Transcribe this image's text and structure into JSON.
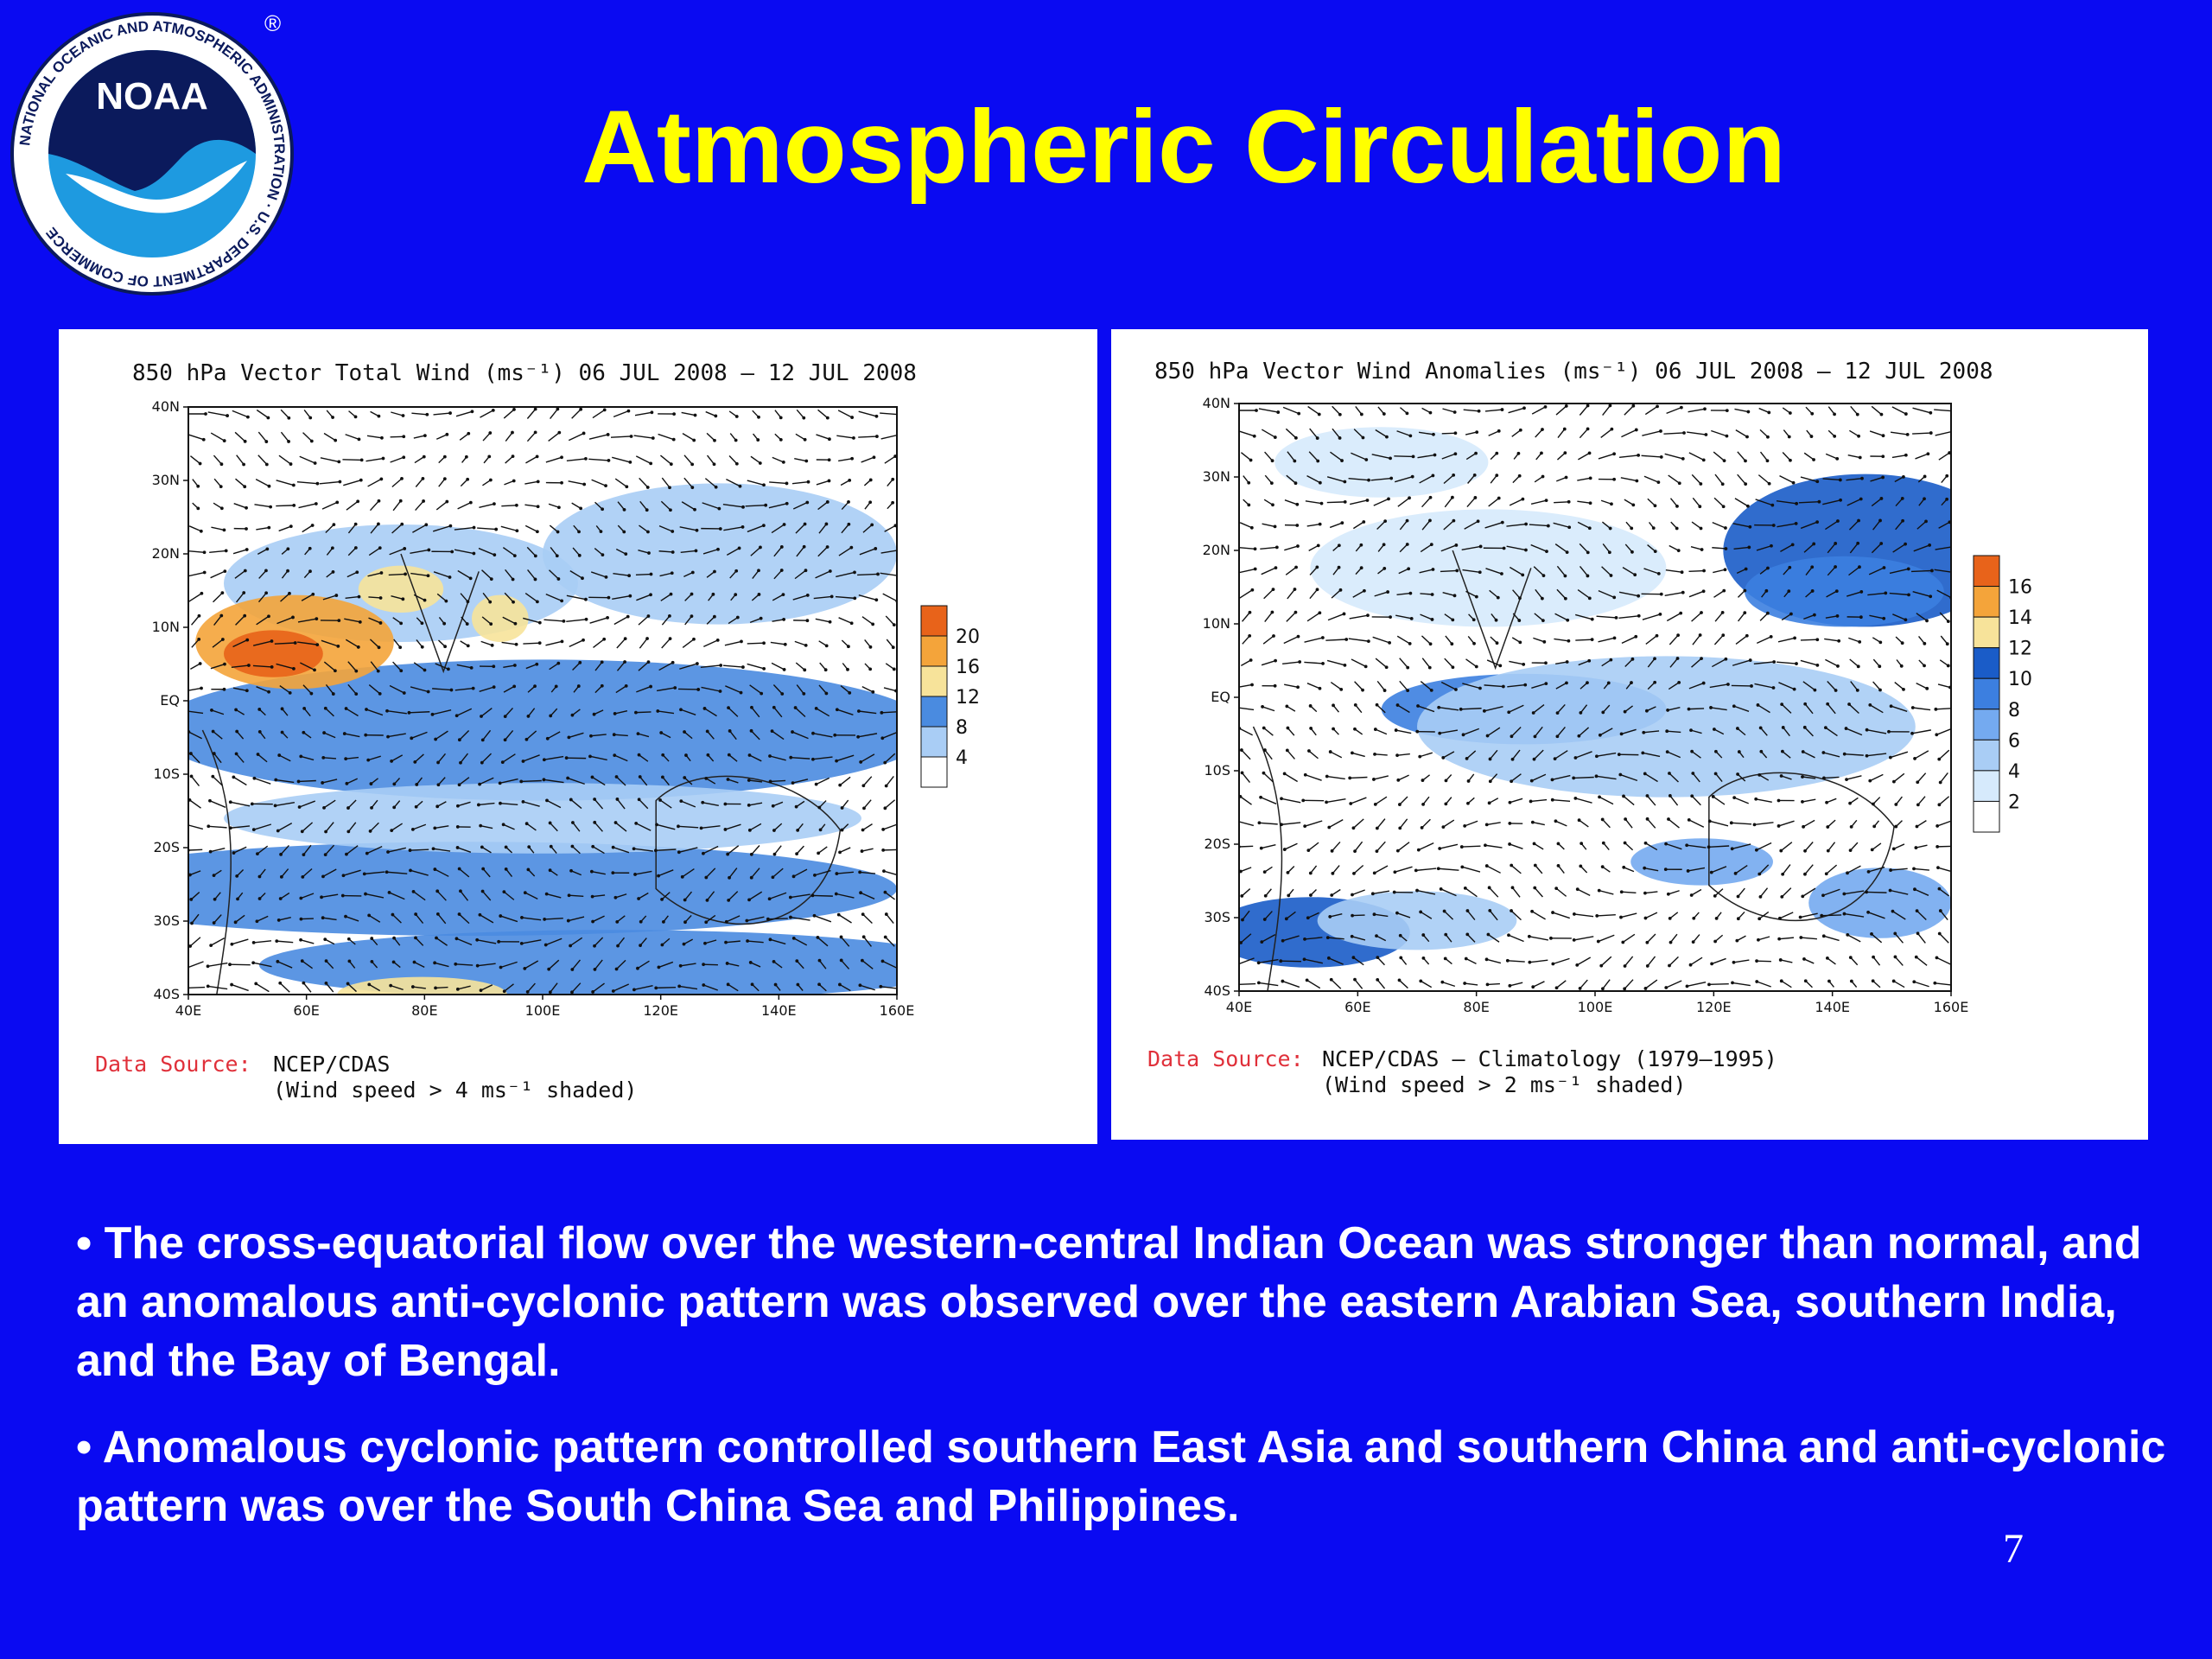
{
  "slide": {
    "title": "Atmospheric Circulation",
    "page_number": "7"
  },
  "logo": {
    "text": "NOAA",
    "ring_text": "NATIONAL OCEANIC AND ATMOSPHERIC ADMINISTRATION · U.S. DEPARTMENT OF COMMERCE",
    "registered": "®"
  },
  "maps": [
    {
      "title": "850 hPa Vector Total Wind (ms⁻¹) 06 JUL 2008 – 12 JUL 2008",
      "lat_labels": [
        "40N",
        "30N",
        "20N",
        "10N",
        "EQ",
        "10S",
        "20S",
        "30S",
        "40S"
      ],
      "lon_labels": [
        "40E",
        "60E",
        "80E",
        "100E",
        "120E",
        "140E",
        "160E"
      ],
      "colorbar_labels": [
        "20",
        "16",
        "12",
        "8",
        "4"
      ],
      "colorbar_colors": [
        "#e8631a",
        "#f4a43a",
        "#f7e39a",
        "#4a8be0",
        "#a9cdf5",
        "#ffffff"
      ],
      "source_label": "Data Source:",
      "source_line1": "NCEP/CDAS",
      "source_line2": "(Wind speed > 4 ms⁻¹ shaded)"
    },
    {
      "title": "850 hPa Vector Wind Anomalies (ms⁻¹) 06 JUL 2008 – 12 JUL 2008",
      "lat_labels": [
        "40N",
        "30N",
        "20N",
        "10N",
        "EQ",
        "10S",
        "20S",
        "30S",
        "40S"
      ],
      "lon_labels": [
        "40E",
        "60E",
        "80E",
        "100E",
        "120E",
        "140E",
        "160E"
      ],
      "colorbar_labels": [
        "16",
        "14",
        "12",
        "10",
        "8",
        "6",
        "4",
        "2"
      ],
      "colorbar_colors": [
        "#e8631a",
        "#f4a43a",
        "#f7e39a",
        "#1a5cc8",
        "#3c7fe0",
        "#74aaf0",
        "#a9cdf5",
        "#d6eafc",
        "#ffffff"
      ],
      "source_label": "Data Source:",
      "source_line1": "NCEP/CDAS – Climatology (1979–1995)",
      "source_line2": "(Wind speed > 2 ms⁻¹ shaded)"
    }
  ],
  "bullets": [
    "• The cross-equatorial flow over the western-central Indian Ocean was stronger than normal, and an anomalous anti-cyclonic pattern was observed over the eastern Arabian Sea, southern India, and the Bay of Bengal.",
    "• Anomalous cyclonic pattern controlled southern East Asia and southern China and anti-cyclonic pattern was over the South China Sea and Philippines."
  ],
  "colors": {
    "background": "#0a0af2",
    "title": "#ffff00",
    "text": "#ffffff",
    "noaa_navy": "#0b1a5c",
    "noaa_blue": "#1e9ae0"
  }
}
